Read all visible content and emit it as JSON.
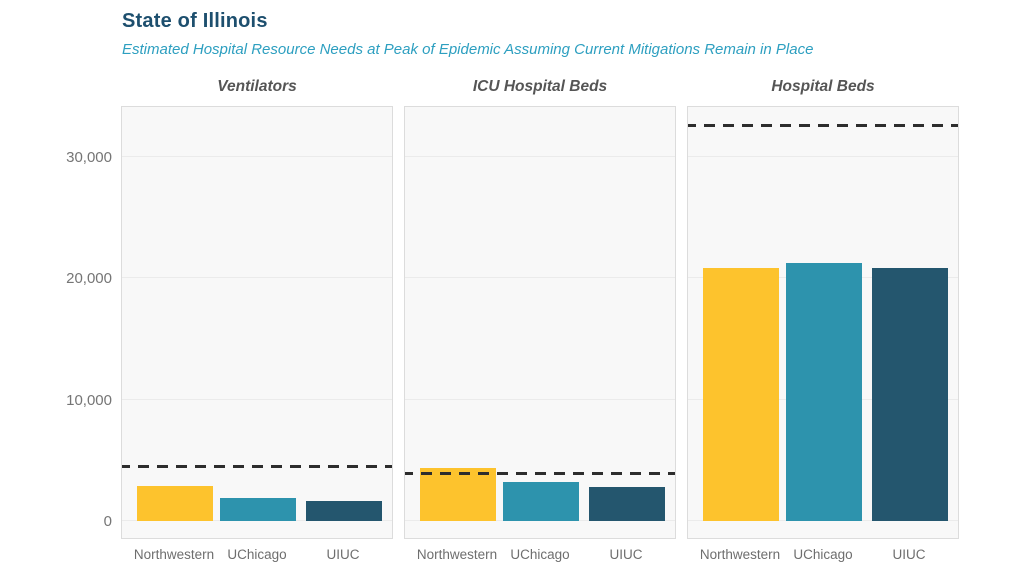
{
  "header": {
    "title": "State of Illinois",
    "subtitle": "Estimated Hospital Resource Needs at Peak of Epidemic Assuming Current Mitigations Remain in Place",
    "title_color": "#1d4f6e",
    "subtitle_color": "#2d9fc0"
  },
  "chart_data": {
    "type": "bar",
    "title": "State of Illinois",
    "subtitle": "Estimated Hospital Resource Needs at Peak of Epidemic Assuming Current Mitigations Remain in Place",
    "layout": "3 small-multiple panels, vertical bars, shared y-axis",
    "categories": [
      "Northwestern",
      "UChicago",
      "UIUC"
    ],
    "bar_colors": [
      "#fdc32d",
      "#2d93ad",
      "#24566e"
    ],
    "panels": [
      {
        "label": "Ventilators",
        "values": [
          2900,
          1900,
          1650
        ],
        "capacity_line": 4500
      },
      {
        "label": "ICU Hospital Beds",
        "values": [
          4350,
          3200,
          2800
        ],
        "capacity_line": 3900
      },
      {
        "label": "Hospital Beds",
        "values": [
          20900,
          21300,
          20900
        ],
        "capacity_line": 32600
      }
    ],
    "capacity_line_style": "dashed",
    "capacity_line_color": "#2d2d2d",
    "xlabel": "",
    "ylabel": "",
    "yticks": [
      {
        "value": 0,
        "label": "0"
      },
      {
        "value": 10000,
        "label": "10,000"
      },
      {
        "value": 20000,
        "label": "20,000"
      },
      {
        "value": 30000,
        "label": "30,000"
      }
    ],
    "ylim": [
      0,
      34300
    ],
    "grid": true,
    "plot_background": "#f8f8f8",
    "legend": "none"
  }
}
